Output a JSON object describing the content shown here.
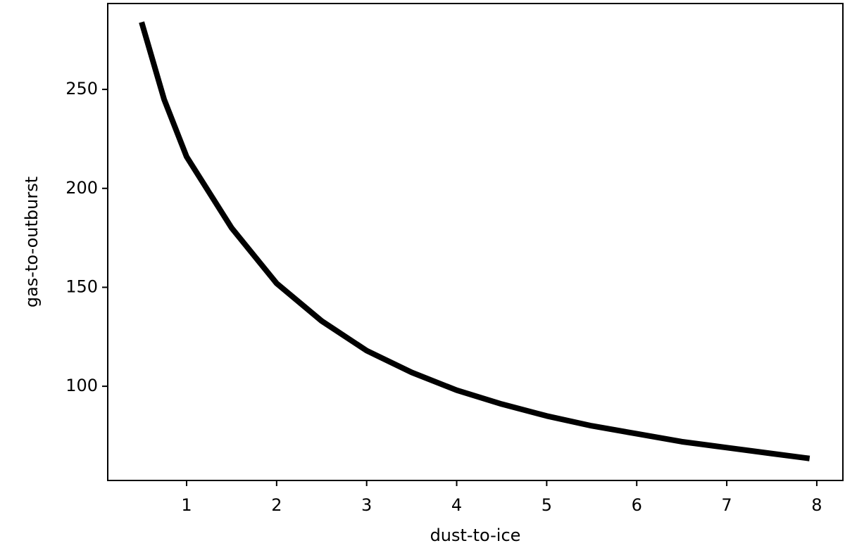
{
  "chart_data": {
    "type": "line",
    "x_label": "dust-to-ice",
    "y_label": "gas-to-outburst",
    "x": [
      0.5,
      0.75,
      1,
      1.5,
      2,
      2.5,
      3,
      3.5,
      4,
      4.5,
      5,
      5.5,
      6,
      6.5,
      7,
      7.5,
      7.92
    ],
    "series": [
      {
        "color": "#000000",
        "values": [
          284,
          245,
          216,
          180,
          152,
          133,
          118,
          107,
          98,
          91,
          85,
          80,
          76,
          72,
          69,
          66,
          63.5
        ]
      }
    ],
    "xlim": [
      0.124,
      8.29
    ],
    "ylim": [
      52.4,
      293.4
    ],
    "xticks": [
      1,
      2,
      3,
      4,
      5,
      6,
      7,
      8
    ],
    "yticks": [
      100,
      150,
      200,
      250
    ],
    "grid": false
  }
}
